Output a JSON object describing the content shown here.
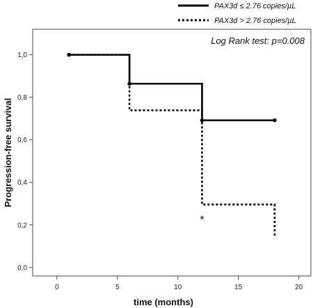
{
  "chart_data": {
    "type": "line",
    "subtype": "kaplan-meier",
    "title": "",
    "xlabel": "time (months)",
    "ylabel": "Progression-free survival",
    "xlim": [
      -2,
      21
    ],
    "ylim": [
      -0.04,
      1.12
    ],
    "x_ticks": [
      0,
      5,
      10,
      15,
      20
    ],
    "y_ticks": [
      0.0,
      0.2,
      0.4,
      0.6,
      0.8,
      1.0
    ],
    "x_tick_labels": [
      "0",
      "5",
      "10",
      "15",
      "20"
    ],
    "y_tick_labels": [
      "0,0",
      "0,2",
      "0,4",
      "0,6",
      "0,8",
      "1,0"
    ],
    "grid": false,
    "legend_position": "top-right-outside",
    "annotation": "Log Rank test: p=0.008",
    "significance_marker": "*",
    "significance_marker_at": {
      "x": 12,
      "y": 0.22
    },
    "series": [
      {
        "name": "PAX3d ≤ 2.76 copies/µL",
        "style": "solid",
        "color": "#000000",
        "steps": [
          {
            "x": 1,
            "y": 1.0
          },
          {
            "x": 6,
            "y": 0.864
          },
          {
            "x": 12,
            "y": 0.692
          },
          {
            "x": 18,
            "y": 0.692
          }
        ],
        "censored": [
          {
            "x": 1,
            "y": 1.0
          },
          {
            "x": 6,
            "y": 0.864
          },
          {
            "x": 12,
            "y": 0.692
          },
          {
            "x": 18,
            "y": 0.692
          }
        ]
      },
      {
        "name": "PAX3d > 2.76 copies/µL",
        "style": "dotted",
        "color": "#000000",
        "steps": [
          {
            "x": 1,
            "y": 1.0
          },
          {
            "x": 6,
            "y": 0.739
          },
          {
            "x": 12,
            "y": 0.296
          },
          {
            "x": 18,
            "y": 0.148
          }
        ],
        "censored": []
      }
    ]
  }
}
